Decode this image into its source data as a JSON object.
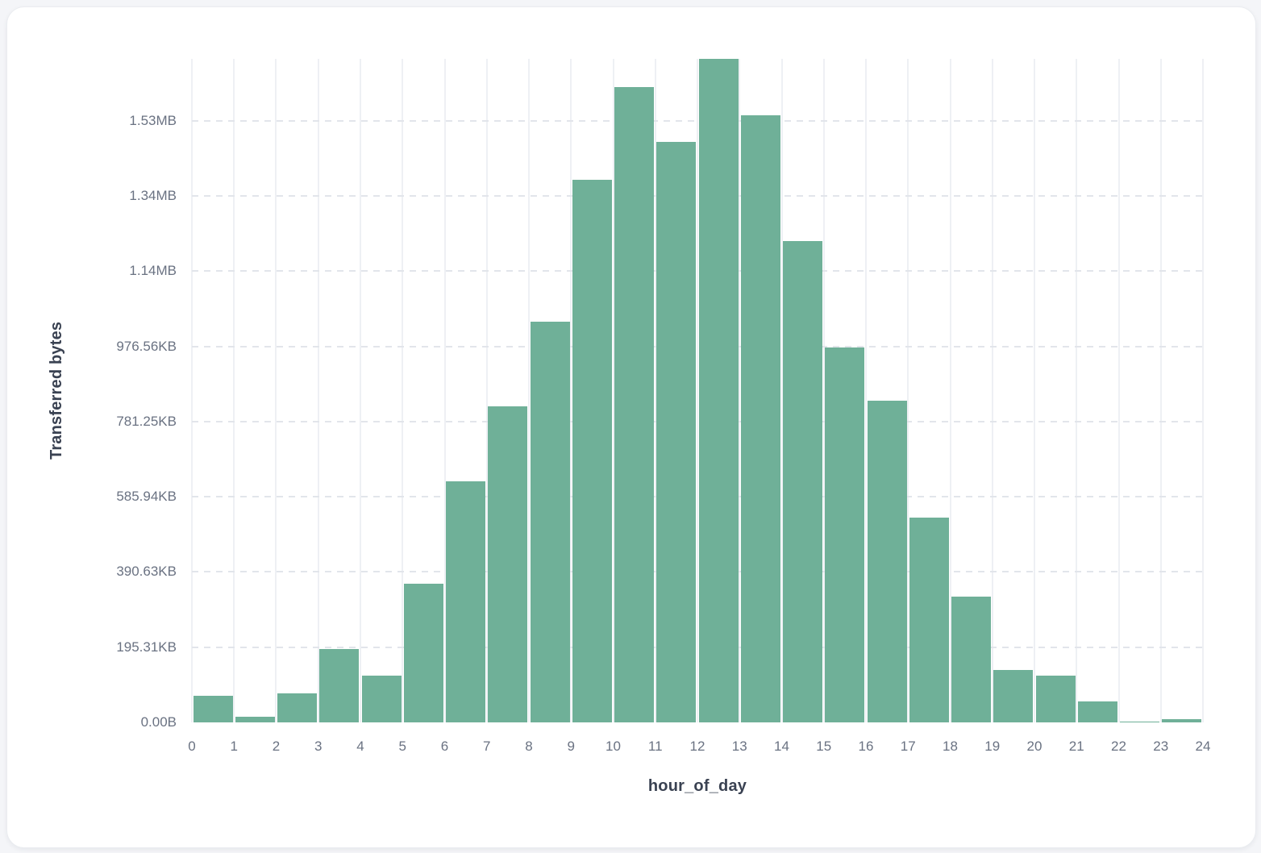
{
  "page": {
    "background_color": "#f4f5f8"
  },
  "card": {
    "background_color": "#ffffff",
    "border_color": "#eaecf0"
  },
  "chart_data": {
    "type": "bar",
    "variant": "histogram",
    "title": "",
    "xlabel": "hour_of_day",
    "ylabel": "Transferred bytes",
    "x_range": [
      0,
      24
    ],
    "bin_width_hours": 1,
    "bin_start_hours": [
      0,
      1,
      2,
      3,
      4,
      5,
      6,
      7,
      8,
      9,
      10,
      11,
      12,
      13,
      14,
      15,
      16,
      17,
      18,
      19,
      20,
      21,
      22,
      23
    ],
    "values_kb": [
      69.1,
      14.7,
      75.4,
      190.5,
      121.4,
      360.1,
      625.9,
      820.3,
      1041.0,
      1408.9,
      1650.0,
      1507.2,
      1722.9,
      1576.3,
      1249.8,
      973.4,
      835.3,
      531.7,
      326.6,
      136.1,
      121.4,
      54.4,
      3.1,
      9.4
    ],
    "y_axis_max_kb": 1722.9,
    "y_ticks": [
      {
        "kb": 0,
        "label": "0.00B"
      },
      {
        "kb": 195.31,
        "label": "195.31KB"
      },
      {
        "kb": 390.63,
        "label": "390.63KB"
      },
      {
        "kb": 585.94,
        "label": "585.94KB"
      },
      {
        "kb": 781.25,
        "label": "781.25KB"
      },
      {
        "kb": 976.56,
        "label": "976.56KB"
      },
      {
        "kb": 1171.88,
        "label": "1.14MB"
      },
      {
        "kb": 1367.19,
        "label": "1.34MB"
      },
      {
        "kb": 1562.5,
        "label": "1.53MB"
      }
    ],
    "x_tick_labels": [
      "0",
      "1",
      "2",
      "3",
      "4",
      "5",
      "6",
      "7",
      "8",
      "9",
      "10",
      "11",
      "12",
      "13",
      "14",
      "15",
      "16",
      "17",
      "18",
      "19",
      "20",
      "21",
      "22",
      "23",
      "24"
    ],
    "bar_color": "#6fb098",
    "grid": {
      "vertical_solid": true,
      "horizontal_dashed": true
    },
    "legend": false
  }
}
